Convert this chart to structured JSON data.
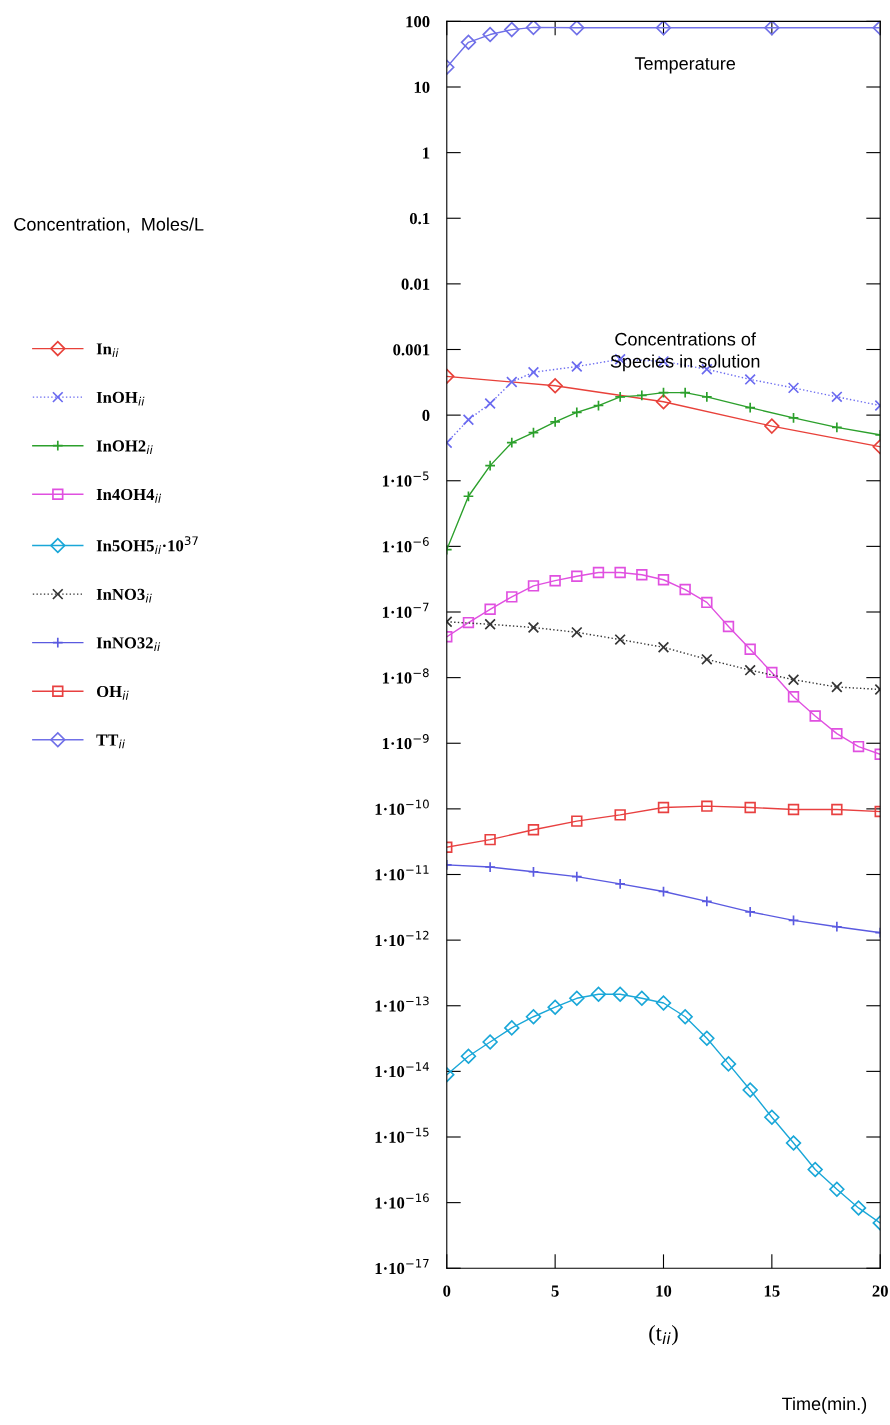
{
  "chart_data": {
    "type": "line",
    "xlabel": "(t$_{ii}$)",
    "annotations": [
      "Temperature",
      "Concentrations of\nSpecies in solution",
      "Time(min.)",
      "Concentration,  Moles/L"
    ],
    "log": "y",
    "grid": false,
    "legend": "left",
    "xlim": [
      0,
      20
    ],
    "xticks": [
      0,
      5,
      10,
      15,
      20
    ],
    "ylim": [
      1e-17,
      100
    ],
    "yticks": [
      {
        "value": 100,
        "label": "100"
      },
      {
        "value": 10,
        "label": "10"
      },
      {
        "value": 1,
        "label": "1"
      },
      {
        "value": 0.1,
        "label": "0.1"
      },
      {
        "value": 0.01,
        "label": "0.01"
      },
      {
        "value": 0.001,
        "label": "0.001"
      },
      {
        "value": 0.0001,
        "label": "0"
      },
      {
        "value": 1e-05,
        "label": "1·10$^{−5}$"
      },
      {
        "value": 1e-06,
        "label": "1·10$^{−6}$"
      },
      {
        "value": 1e-07,
        "label": "1·10$^{−7}$"
      },
      {
        "value": 1e-08,
        "label": "1·10$^{−8}$"
      },
      {
        "value": 1e-09,
        "label": "1·10$^{−9}$"
      },
      {
        "value": 1e-10,
        "label": "1·10$^{−10}$"
      },
      {
        "value": 1e-11,
        "label": "1·10$^{−11}$"
      },
      {
        "value": 1e-12,
        "label": "1·10$^{−12}$"
      },
      {
        "value": 1e-13,
        "label": "1·10$^{−13}$"
      },
      {
        "value": 1e-14,
        "label": "1·10$^{−14}$"
      },
      {
        "value": 1e-15,
        "label": "1·10$^{−15}$"
      },
      {
        "value": 1e-16,
        "label": "1·10$^{−16}$"
      },
      {
        "value": 1e-17,
        "label": "1·10$^{−17}$"
      }
    ],
    "series": [
      {
        "name": "In$_{ii}$",
        "color": "#e8413a",
        "marker": "diamond",
        "line_style": "solid",
        "x": [
          0,
          5,
          10,
          15,
          20
        ],
        "values": [
          0.00039,
          0.00028,
          0.00016,
          6.8e-05,
          3.3e-05
        ]
      },
      {
        "name": "InOH$_{ii}$",
        "color": "#6a6af0",
        "marker": "cross",
        "line_style": "dotted",
        "x": [
          0,
          1,
          2,
          3,
          4,
          6,
          8,
          10,
          12,
          14,
          16,
          18,
          20
        ],
        "values": [
          3.8e-05,
          8.5e-05,
          0.00015,
          0.00032,
          0.00045,
          0.00055,
          0.00071,
          0.00066,
          0.0005,
          0.00035,
          0.00026,
          0.00019,
          0.00014
        ]
      },
      {
        "name": "InOH2$_{ii}$",
        "color": "#2ca02c",
        "marker": "plus",
        "line_style": "solid",
        "x": [
          0,
          1,
          2,
          3,
          4,
          5,
          6,
          7,
          8,
          9,
          10,
          11,
          12,
          14,
          16,
          18,
          20
        ],
        "values": [
          8.9e-07,
          5.8e-06,
          1.7e-05,
          3.8e-05,
          5.4e-05,
          7.9e-05,
          0.00011,
          0.00014,
          0.00019,
          0.0002,
          0.00022,
          0.00022,
          0.00019,
          0.00013,
          9.1e-05,
          6.5e-05,
          5e-05
        ]
      },
      {
        "name": "In4OH4$_{ii}$",
        "color": "#e050e0",
        "marker": "square",
        "line_style": "solid",
        "x": [
          0,
          1,
          2,
          3,
          4,
          5,
          6,
          7,
          8,
          9,
          10,
          11,
          12,
          13,
          14,
          15,
          16,
          17,
          18,
          19,
          20
        ],
        "values": [
          4.2e-08,
          6.9e-08,
          1.1e-07,
          1.7e-07,
          2.5e-07,
          3e-07,
          3.5e-07,
          4e-07,
          4e-07,
          3.7e-07,
          3.1e-07,
          2.2e-07,
          1.4e-07,
          6e-08,
          2.7e-08,
          1.2e-08,
          5.1e-09,
          2.6e-09,
          1.4e-09,
          8.9e-10,
          6.8e-10
        ]
      },
      {
        "name": "In5OH5$_{ii}$·10$^{37}$",
        "color": "#1aa7d8",
        "marker": "diamond",
        "line_style": "solid",
        "x": [
          0,
          1,
          2,
          3,
          4,
          5,
          6,
          7,
          8,
          9,
          10,
          11,
          12,
          13,
          14,
          15,
          16,
          17,
          18,
          19,
          20
        ],
        "values": [
          8.9e-15,
          1.7e-14,
          2.8e-14,
          4.6e-14,
          6.8e-14,
          9.5e-14,
          1.3e-13,
          1.5e-13,
          1.5e-13,
          1.3e-13,
          1.1e-13,
          6.8e-14,
          3.2e-14,
          1.3e-14,
          5.2e-15,
          2e-15,
          8.1e-16,
          3.2e-16,
          1.6e-16,
          8.3e-17,
          4.9e-17
        ]
      },
      {
        "name": "InNO3$_{ii}$",
        "color": "#333333",
        "marker": "cross",
        "line_style": "dotted",
        "x": [
          0,
          2,
          4,
          6,
          8,
          10,
          12,
          14,
          16,
          18,
          20
        ],
        "values": [
          7.1e-08,
          6.5e-08,
          5.8e-08,
          4.9e-08,
          3.8e-08,
          2.9e-08,
          1.9e-08,
          1.3e-08,
          9.3e-09,
          7.2e-09,
          6.6e-09
        ]
      },
      {
        "name": "InNO32$_{ii}$",
        "color": "#5a5ae0",
        "marker": "plus",
        "line_style": "solid",
        "x": [
          0,
          2,
          4,
          6,
          8,
          10,
          12,
          14,
          16,
          18,
          20
        ],
        "values": [
          1.4e-11,
          1.3e-11,
          1.1e-11,
          9.3e-12,
          7.2e-12,
          5.5e-12,
          3.9e-12,
          2.7e-12,
          2e-12,
          1.6e-12,
          1.3e-12
        ]
      },
      {
        "name": "OH$_{ii}$",
        "color": "#e84040",
        "marker": "square",
        "line_style": "solid",
        "x": [
          0,
          2,
          4,
          6,
          8,
          10,
          12,
          14,
          16,
          18,
          20
        ],
        "values": [
          2.6e-11,
          3.4e-11,
          4.8e-11,
          6.5e-11,
          8.1e-11,
          1.05e-10,
          1.1e-10,
          1.05e-10,
          9.8e-11,
          9.8e-11,
          9.1e-11
        ]
      },
      {
        "name": "TT$_{ii}$",
        "color": "#7070e8",
        "marker": "diamond",
        "line_style": "solid",
        "x": [
          0,
          1,
          2,
          3,
          4,
          6,
          10,
          15,
          20
        ],
        "values": [
          20,
          48,
          63,
          75,
          81,
          80,
          80,
          80,
          80
        ]
      }
    ]
  }
}
